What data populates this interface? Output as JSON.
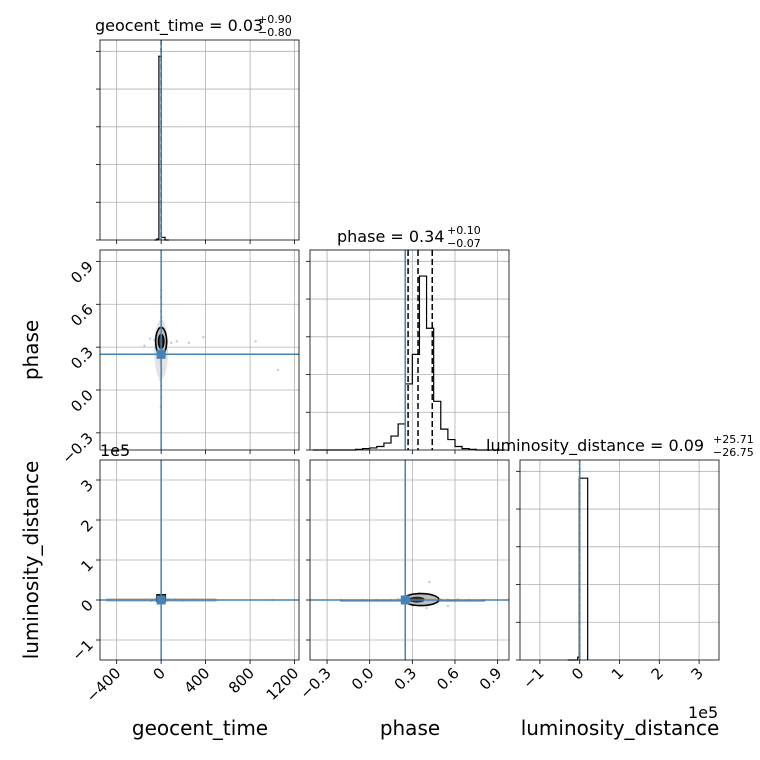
{
  "chart_data": {
    "type": "corner",
    "params": [
      "geocent_time",
      "phase",
      "luminosity_distance"
    ],
    "axis_labels": {
      "geocent_time": "geocent_time",
      "phase": "phase",
      "luminosity_distance": "luminosity_distance"
    },
    "titles": {
      "geocent_time": {
        "name": "geocent_time",
        "median": "0.03",
        "plus": "+0.90",
        "minus": "−0.80"
      },
      "phase": {
        "name": "phase",
        "median": "0.34",
        "plus": "+0.10",
        "minus": "−0.07"
      },
      "luminosity_distance": {
        "name": "luminosity_distance",
        "median": "0.09",
        "plus": "+25.71",
        "minus": "−26.75"
      }
    },
    "ranges": {
      "geocent_time": [
        -550,
        1240
      ],
      "phase": [
        -0.42,
        0.98
      ],
      "luminosity_distance": [
        -150000,
        350000
      ]
    },
    "ticks": {
      "geocent_time": [
        -400,
        0,
        400,
        800,
        1200
      ],
      "phase": [
        -0.3,
        0.0,
        0.3,
        0.6,
        0.9
      ],
      "luminosity_distance": [
        -100000,
        0,
        100000,
        200000,
        300000
      ]
    },
    "tick_labels": {
      "geocent_time": [
        "−400",
        "0",
        "400",
        "800",
        "1200"
      ],
      "phase": [
        "−0.3",
        "0.0",
        "0.3",
        "0.6",
        "0.9"
      ],
      "luminosity_distance": [
        "−1",
        "0",
        "1",
        "2",
        "3"
      ]
    },
    "offset_text": "1e5",
    "truths": {
      "geocent_time": 0.0,
      "phase": 0.25,
      "luminosity_distance": 0.0
    },
    "quantile_lines": {
      "geocent_time": [
        -0.77,
        0.03,
        0.93
      ],
      "phase": [
        0.27,
        0.34,
        0.44
      ],
      "luminosity_distance": [
        -26.66,
        0.09,
        25.8
      ]
    },
    "histograms": {
      "geocent_time": {
        "bins": [
          -20,
          0,
          20
        ],
        "counts": [
          3.4,
          0.05
        ],
        "ymax": 3.7
      },
      "phase": {
        "edges": [
          -0.4,
          -0.35,
          -0.3,
          -0.25,
          -0.2,
          -0.15,
          -0.1,
          -0.05,
          0.0,
          0.05,
          0.1,
          0.15,
          0.2,
          0.25,
          0.3,
          0.35,
          0.4,
          0.45,
          0.5,
          0.55,
          0.6,
          0.65,
          0.7,
          0.75,
          0.8,
          0.85,
          0.9,
          0.95
        ],
        "counts": [
          0,
          0,
          0,
          0,
          0,
          0,
          0.004,
          0.008,
          0.012,
          0.02,
          0.04,
          0.08,
          0.15,
          0.38,
          0.55,
          1.0,
          0.7,
          0.28,
          0.12,
          0.06,
          0.02,
          0.008,
          0.004,
          0,
          0,
          0,
          0
        ],
        "ymax": 1.15
      },
      "luminosity_distance": {
        "edges": [
          -25000,
          0,
          20000
        ],
        "counts": [
          0.015,
          1.0
        ],
        "ymax": 1.1
      }
    },
    "scatter_points": {
      "phase_vs_geocent_time": [
        [
          2,
          0.35
        ],
        [
          -3,
          0.42
        ],
        [
          5,
          0.28
        ],
        [
          -8,
          0.31
        ],
        [
          10,
          0.38
        ],
        [
          -4,
          0.22
        ],
        [
          3,
          0.51
        ],
        [
          -2,
          0.18
        ],
        [
          6,
          0.45
        ],
        [
          -6,
          0.33
        ],
        [
          1,
          0.6
        ],
        [
          -1,
          0.65
        ],
        [
          4,
          0.12
        ],
        [
          -5,
          0.07
        ],
        [
          12,
          0.3
        ],
        [
          -12,
          0.34
        ],
        [
          20,
          0.36
        ],
        [
          -25,
          0.29
        ],
        [
          35,
          0.33
        ],
        [
          -40,
          0.32
        ],
        [
          55,
          0.34
        ],
        [
          -60,
          0.35
        ],
        [
          90,
          0.33
        ],
        [
          -100,
          0.36
        ],
        [
          140,
          0.34
        ],
        [
          -150,
          0.31
        ],
        [
          250,
          0.33
        ],
        [
          380,
          0.37
        ],
        [
          850,
          0.34
        ],
        [
          1050,
          0.14
        ],
        [
          0,
          0.03
        ],
        [
          2,
          -0.05
        ],
        [
          -3,
          -0.12
        ],
        [
          1,
          0.7
        ],
        [
          -2,
          0.55
        ],
        [
          7,
          0.48
        ],
        [
          -9,
          0.4
        ],
        [
          15,
          0.25
        ],
        [
          -15,
          0.2
        ],
        [
          8,
          0.15
        ]
      ],
      "luminosity_distance_vs_geocent_time": [
        [
          2,
          2000
        ],
        [
          -4,
          -3000
        ],
        [
          8,
          5000
        ],
        [
          -10,
          1000
        ],
        [
          20,
          -2000
        ],
        [
          -25,
          3000
        ],
        [
          40,
          -1500
        ],
        [
          -50,
          2500
        ],
        [
          70,
          1000
        ],
        [
          -90,
          -2000
        ],
        [
          130,
          1500
        ],
        [
          -150,
          500
        ],
        [
          200,
          -1000
        ],
        [
          300,
          800
        ],
        [
          500,
          0
        ],
        [
          1000,
          0
        ]
      ],
      "luminosity_distance_vs_phase": [
        [
          0.2,
          3000
        ],
        [
          0.25,
          8000
        ],
        [
          0.3,
          14000
        ],
        [
          0.35,
          17000
        ],
        [
          0.4,
          12000
        ],
        [
          0.45,
          6000
        ],
        [
          0.5,
          2000
        ],
        [
          0.55,
          1000
        ],
        [
          0.28,
          -2000
        ],
        [
          0.33,
          -4000
        ],
        [
          0.38,
          -3000
        ],
        [
          0.43,
          -1500
        ],
        [
          0.48,
          500
        ],
        [
          0.58,
          -1000
        ],
        [
          0.62,
          2000
        ],
        [
          0.15,
          500
        ],
        [
          0.1,
          -500
        ],
        [
          0.05,
          0
        ],
        [
          -0.05,
          0
        ],
        [
          -0.2,
          0
        ],
        [
          0.7,
          0
        ],
        [
          0.8,
          0
        ],
        [
          0.4,
          -20000
        ],
        [
          0.42,
          45000
        ],
        [
          0.55,
          -15000
        ]
      ]
    }
  }
}
